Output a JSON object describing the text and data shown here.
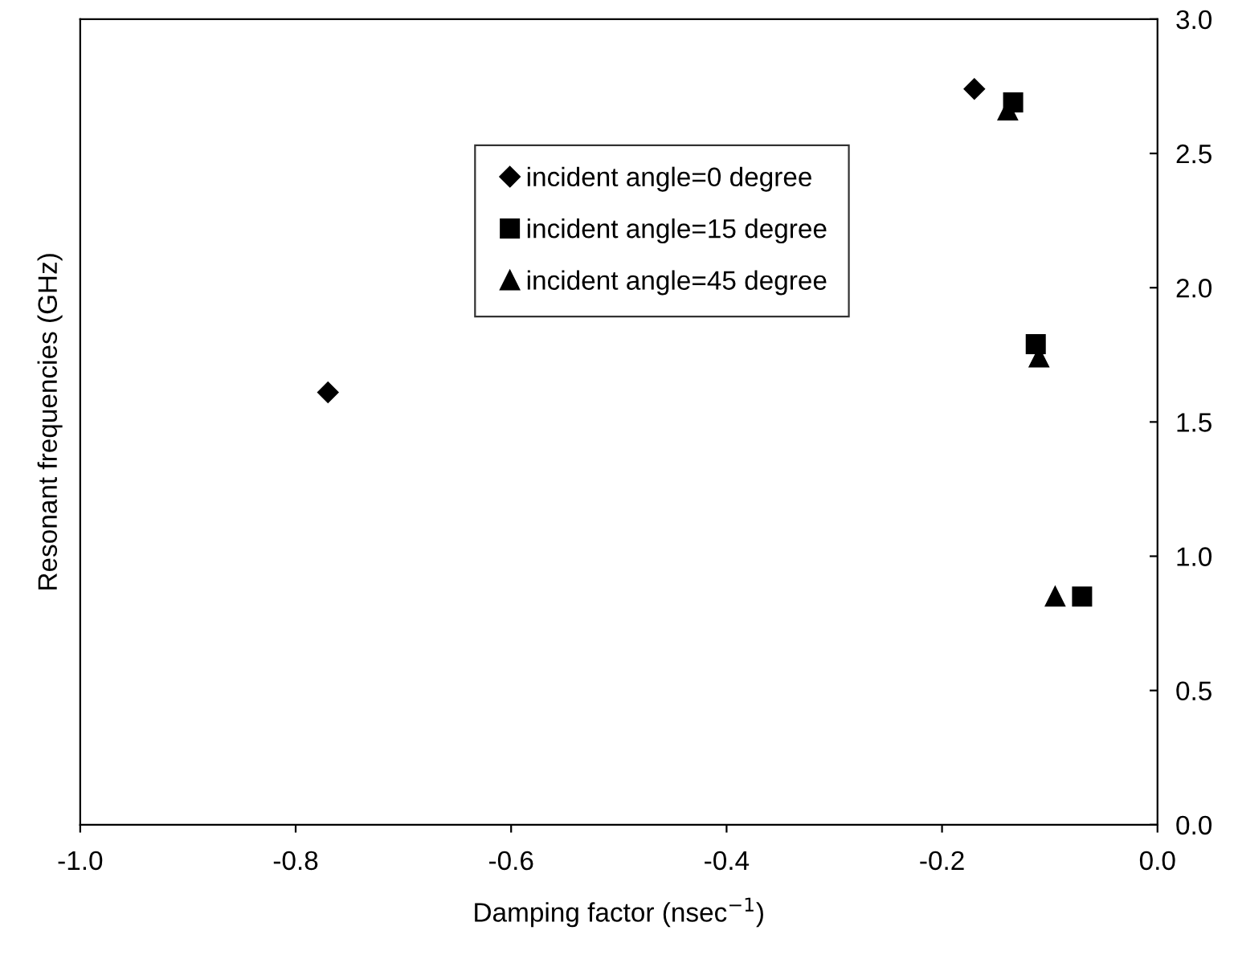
{
  "chart_data": {
    "type": "scatter",
    "xlabel": "Damping factor (nsec$^{−1}$)",
    "ylabel": "Resonant frequencies (GHz)",
    "xlim": [
      -1.0,
      0.0
    ],
    "xticks": [
      {
        "value": -1.0,
        "label": "-1.0"
      },
      {
        "value": -0.8,
        "label": "-0.8"
      },
      {
        "value": -0.6,
        "label": "-0.6"
      },
      {
        "value": -0.4,
        "label": "-0.4"
      },
      {
        "value": -0.2,
        "label": "-0.2"
      },
      {
        "value": 0.0,
        "label": "0.0"
      }
    ],
    "ylim": [
      0.0,
      3.0
    ],
    "yticks": [
      {
        "value": 0.0,
        "label": "0.0"
      },
      {
        "value": 0.5,
        "label": "0.5"
      },
      {
        "value": 1.0,
        "label": "1.0"
      },
      {
        "value": 1.5,
        "label": "1.5"
      },
      {
        "value": 2.0,
        "label": "2.0"
      },
      {
        "value": 2.5,
        "label": "2.5"
      },
      {
        "value": 3.0,
        "label": "3.0"
      }
    ],
    "grid": false,
    "legend": "top",
    "series": [
      {
        "name": "incident angle=0 degree",
        "color": "#000000",
        "marker": "diamond",
        "x": [
          -0.77,
          -0.17
        ],
        "values": [
          1.61,
          2.74
        ]
      },
      {
        "name": "incident angle=15 degree",
        "color": "#000000",
        "marker": "square",
        "x": [
          -0.134,
          -0.113,
          -0.07
        ],
        "values": [
          2.69,
          1.79,
          0.85
        ]
      },
      {
        "name": "incident angle=45 degree",
        "color": "#000000",
        "marker": "triangle",
        "x": [
          -0.139,
          -0.11,
          -0.095
        ],
        "values": [
          2.66,
          1.74,
          0.85
        ]
      }
    ]
  }
}
